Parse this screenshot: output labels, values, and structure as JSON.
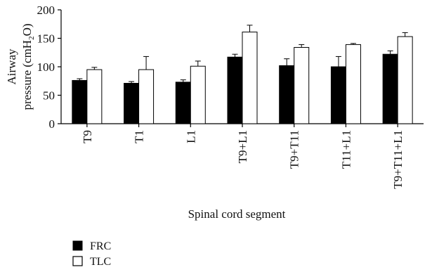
{
  "chart_data": {
    "type": "bar",
    "categories": [
      "T9",
      "T1",
      "L1",
      "T9+L1",
      "T9+T11",
      "T11+L1",
      "T9+T11+L1"
    ],
    "series": [
      {
        "name": "FRC",
        "values": [
          76,
          71,
          73,
          117,
          102,
          100,
          122
        ],
        "errors": [
          3,
          3,
          4,
          5,
          12,
          18,
          6
        ]
      },
      {
        "name": "TLC",
        "values": [
          95,
          95,
          101,
          161,
          134,
          139,
          153
        ],
        "errors": [
          4,
          23,
          9,
          12,
          5,
          2,
          7
        ]
      }
    ],
    "xlabel": "Spinal cord segment",
    "ylabel_line1": "Airway",
    "ylabel_line2_prefix": "pressure (cmH",
    "ylabel_line2_sub": "2",
    "ylabel_line2_suffix": "O)",
    "ylim": [
      0,
      200
    ],
    "yticks": [
      0,
      50,
      100,
      150,
      200
    ],
    "grid": false,
    "legend_position": "bottom-left",
    "colors": {
      "FRC": "#000000",
      "TLC": "#ffffff",
      "stroke": "#000000"
    }
  }
}
